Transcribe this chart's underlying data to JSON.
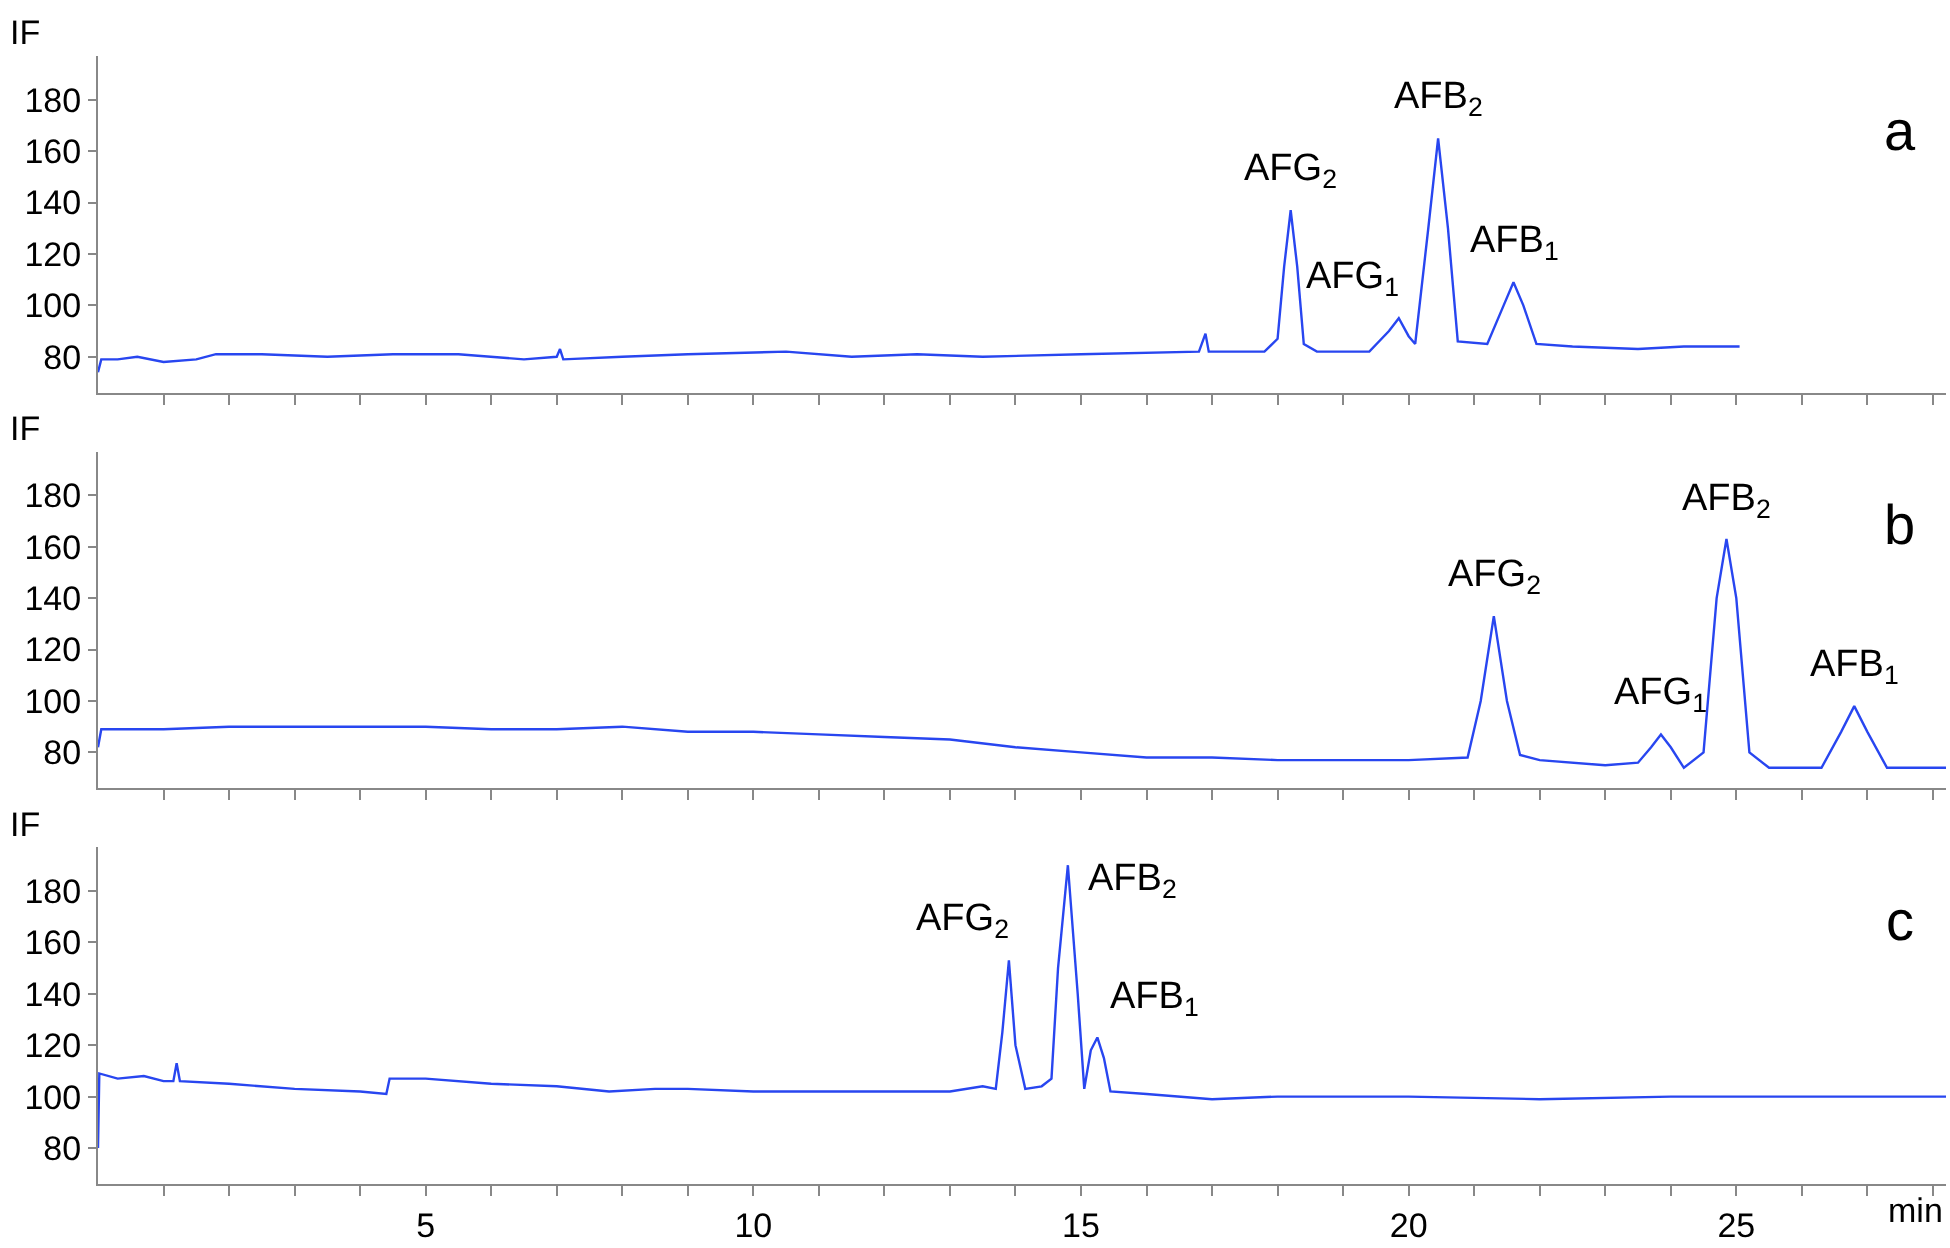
{
  "chart_data": [
    {
      "type": "line",
      "ylabel": "IF",
      "tick_labels": "y",
      "xlim": [
        0,
        28.2
      ],
      "ylim": [
        66,
        197
      ],
      "yticks": [
        80,
        100,
        120,
        140,
        160,
        180
      ],
      "xticks": [
        {
          "value": 1,
          "label": null
        },
        {
          "value": 2,
          "label": null
        },
        {
          "value": 3,
          "label": null
        },
        {
          "value": 4,
          "label": null
        },
        5,
        {
          "value": 6,
          "label": null
        },
        {
          "value": 7,
          "label": null
        },
        {
          "value": 8,
          "label": null
        },
        {
          "value": 9,
          "label": null
        },
        10,
        {
          "value": 11,
          "label": null
        },
        {
          "value": 12,
          "label": null
        },
        {
          "value": 13,
          "label": null
        },
        {
          "value": 14,
          "label": null
        },
        15,
        {
          "value": 16,
          "label": null
        },
        {
          "value": 17,
          "label": null
        },
        {
          "value": 18,
          "label": null
        },
        {
          "value": 19,
          "label": null
        },
        20,
        {
          "value": 21,
          "label": null
        },
        {
          "value": 22,
          "label": null
        },
        {
          "value": 23,
          "label": null
        },
        {
          "value": 24,
          "label": null
        },
        25,
        {
          "value": 26,
          "label": null
        },
        {
          "value": 27,
          "label": null
        },
        {
          "value": 28,
          "label": null
        }
      ],
      "x": [
        0,
        0.05,
        0.3,
        0.6,
        1.0,
        1.5,
        1.8,
        2.5,
        3.5,
        4.5,
        5.5,
        6.5,
        7.0,
        7.05,
        7.1,
        8.0,
        9.0,
        10.5,
        11.5,
        12.5,
        13.5,
        15,
        16.8,
        16.9,
        16.95,
        17.8,
        18.0,
        18.1,
        18.2,
        18.3,
        18.4,
        18.6,
        19.4,
        19.7,
        19.85,
        20.0,
        20.1,
        20.3,
        20.45,
        20.6,
        20.75,
        21.2,
        21.45,
        21.6,
        21.75,
        21.95,
        22.5,
        23.5,
        24.2,
        25.05
      ],
      "series": [
        {
          "color": "#2846f0",
          "values": [
            74,
            79,
            79,
            80,
            78,
            79,
            81,
            81,
            80,
            81,
            81,
            79,
            80,
            83,
            79,
            80,
            81,
            82,
            80,
            81,
            80,
            81,
            82,
            89,
            82,
            82,
            87,
            115,
            137,
            115,
            85,
            82,
            82,
            90,
            95,
            88,
            85,
            130,
            165,
            130,
            86,
            85,
            100,
            109,
            100,
            85,
            84,
            83,
            84,
            84
          ]
        }
      ],
      "annotations": [
        {
          "text": "AFG$_{2}$",
          "x": 18.2,
          "y": 137
        },
        {
          "text": "AFG$_{1}$",
          "x": 19.85,
          "y": 95
        },
        {
          "text": "AFB$_{2}$",
          "x": 20.45,
          "y": 165
        },
        {
          "text": "AFB$_{1}$",
          "x": 21.6,
          "y": 109
        },
        "a"
      ]
    },
    {
      "type": "line",
      "ylabel": "IF",
      "tick_labels": "y",
      "xlim": [
        0,
        28.2
      ],
      "ylim": [
        66,
        197
      ],
      "yticks": [
        80,
        100,
        120,
        140,
        160,
        180
      ],
      "xticks": [
        {
          "value": 1,
          "label": null
        },
        {
          "value": 2,
          "label": null
        },
        {
          "value": 3,
          "label": null
        },
        {
          "value": 4,
          "label": null
        },
        5,
        {
          "value": 6,
          "label": null
        },
        {
          "value": 7,
          "label": null
        },
        {
          "value": 8,
          "label": null
        },
        {
          "value": 9,
          "label": null
        },
        10,
        {
          "value": 11,
          "label": null
        },
        {
          "value": 12,
          "label": null
        },
        {
          "value": 13,
          "label": null
        },
        {
          "value": 14,
          "label": null
        },
        15,
        {
          "value": 16,
          "label": null
        },
        {
          "value": 17,
          "label": null
        },
        {
          "value": 18,
          "label": null
        },
        {
          "value": 19,
          "label": null
        },
        20,
        {
          "value": 21,
          "label": null
        },
        {
          "value": 22,
          "label": null
        },
        {
          "value": 23,
          "label": null
        },
        {
          "value": 24,
          "label": null
        },
        25,
        {
          "value": 26,
          "label": null
        },
        {
          "value": 27,
          "label": null
        },
        {
          "value": 28,
          "label": null
        }
      ],
      "x": [
        0,
        0.05,
        1,
        2,
        3,
        4,
        5,
        6,
        7,
        8,
        9,
        10,
        11,
        12,
        13,
        14,
        15,
        16,
        17,
        18,
        19,
        20,
        20.9,
        21.1,
        21.3,
        21.5,
        21.7,
        22,
        23,
        23.5,
        23.7,
        23.85,
        24.0,
        24.2,
        24.5,
        24.7,
        24.85,
        25.0,
        25.2,
        25.5,
        26.3,
        26.6,
        26.8,
        27.0,
        27.3,
        28.2
      ],
      "series": [
        {
          "color": "#2846f0",
          "values": [
            82,
            89,
            89,
            90,
            90,
            90,
            90,
            89,
            89,
            90,
            88,
            88,
            87,
            86,
            85,
            82,
            80,
            78,
            78,
            77,
            77,
            77,
            78,
            100,
            133,
            100,
            79,
            77,
            75,
            76,
            82,
            87,
            82,
            74,
            80,
            140,
            163,
            140,
            80,
            74,
            74,
            88,
            98,
            88,
            74,
            74
          ]
        }
      ],
      "annotations": [
        {
          "text": "AFG$_{2}$",
          "x": 21.3,
          "y": 133
        },
        {
          "text": "AFG$_{1}$",
          "x": 23.85,
          "y": 87
        },
        {
          "text": "AFB$_{2}$",
          "x": 24.85,
          "y": 163
        },
        {
          "text": "AFB$_{1}$",
          "x": 26.8,
          "y": 98
        },
        "b"
      ]
    },
    {
      "type": "line",
      "ylabel": "IF",
      "xlabel": "min",
      "xlim": [
        0,
        28.2
      ],
      "ylim": [
        66,
        197
      ],
      "yticks": [
        80,
        100,
        120,
        140,
        160,
        180
      ],
      "xticks": [
        {
          "value": 1,
          "label": null
        },
        {
          "value": 2,
          "label": null
        },
        {
          "value": 3,
          "label": null
        },
        {
          "value": 4,
          "label": null
        },
        5,
        {
          "value": 6,
          "label": null
        },
        {
          "value": 7,
          "label": null
        },
        {
          "value": 8,
          "label": null
        },
        {
          "value": 9,
          "label": null
        },
        10,
        {
          "value": 11,
          "label": null
        },
        {
          "value": 12,
          "label": null
        },
        {
          "value": 13,
          "label": null
        },
        {
          "value": 14,
          "label": null
        },
        15,
        {
          "value": 16,
          "label": null
        },
        {
          "value": 17,
          "label": null
        },
        {
          "value": 18,
          "label": null
        },
        {
          "value": 19,
          "label": null
        },
        20,
        {
          "value": 21,
          "label": null
        },
        {
          "value": 22,
          "label": null
        },
        {
          "value": 23,
          "label": null
        },
        {
          "value": 24,
          "label": null
        },
        25,
        {
          "value": 26,
          "label": null
        },
        {
          "value": 27,
          "label": null
        },
        {
          "value": 28,
          "label": null
        }
      ],
      "x": [
        0,
        0.02,
        0.3,
        0.7,
        1.0,
        1.15,
        1.2,
        1.25,
        2,
        3,
        4,
        4.4,
        4.45,
        5,
        6,
        7,
        7.8,
        8.5,
        9,
        10,
        11,
        12,
        13,
        13.5,
        13.7,
        13.8,
        13.9,
        14.0,
        14.15,
        14.4,
        14.55,
        14.65,
        14.8,
        14.95,
        15.05,
        15.15,
        15.25,
        15.35,
        15.45,
        16,
        17,
        18,
        20,
        22,
        24,
        26,
        28.2
      ],
      "series": [
        {
          "color": "#2846f0",
          "values": [
            80,
            109,
            107,
            108,
            106,
            106,
            113,
            106,
            105,
            103,
            102,
            101,
            107,
            107,
            105,
            104,
            102,
            103,
            103,
            102,
            102,
            102,
            102,
            104,
            103,
            125,
            153,
            120,
            103,
            104,
            107,
            150,
            190,
            140,
            103,
            118,
            123,
            115,
            102,
            101,
            99,
            100,
            100,
            99,
            100,
            100,
            100
          ]
        }
      ],
      "annotations": [
        {
          "text": "AFG$_{2}$",
          "x": 13.9,
          "y": 153
        },
        {
          "text": "AFB$_{2}$",
          "x": 14.8,
          "y": 190
        },
        {
          "text": "AFB$_{1}$",
          "x": 15.25,
          "y": 123
        },
        "c"
      ]
    }
  ]
}
